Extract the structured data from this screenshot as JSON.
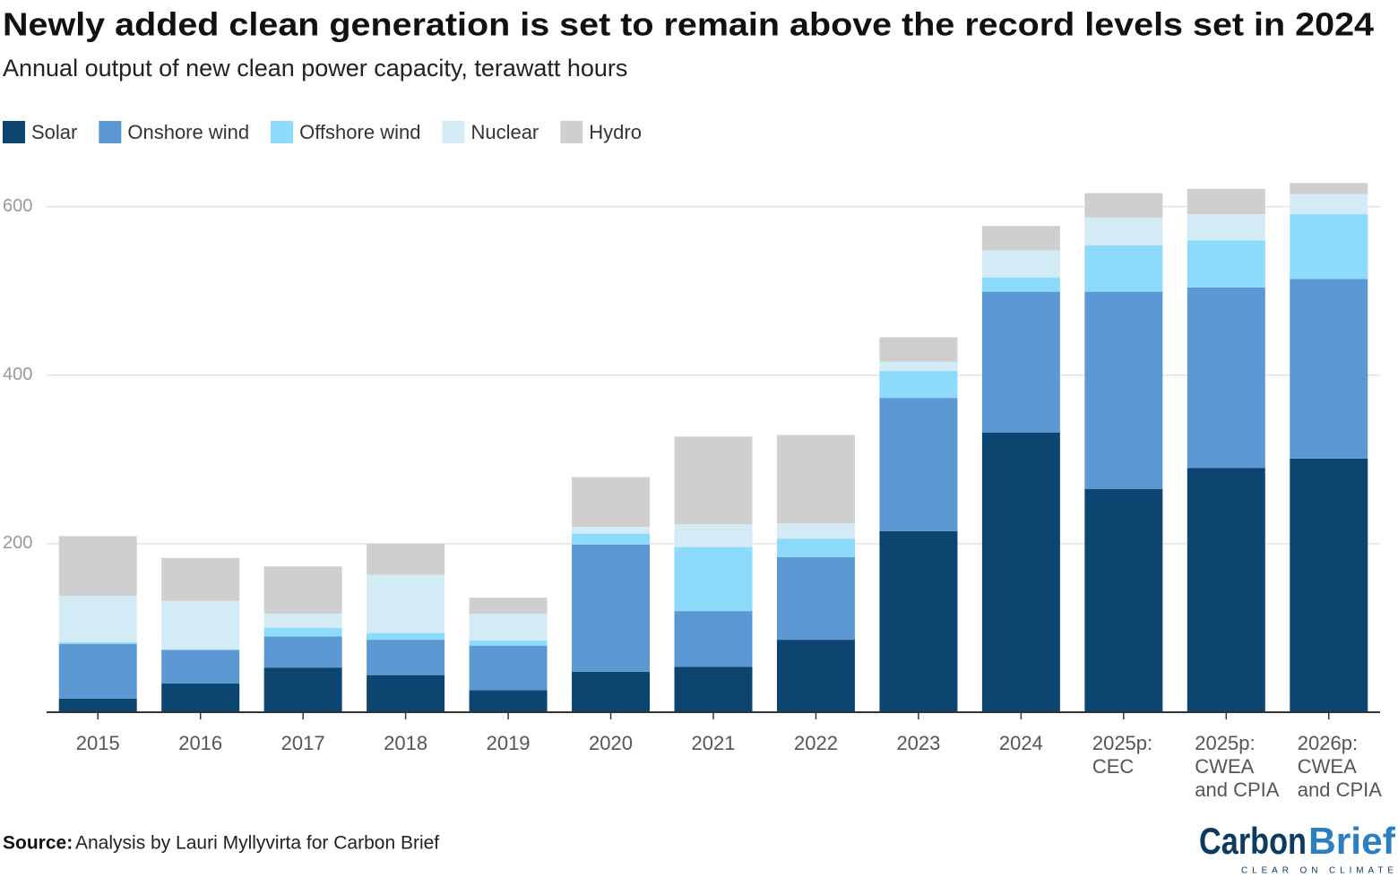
{
  "chart_data": {
    "type": "stacked-bar",
    "title": "Newly added clean generation is set to remain above the record levels set in 2024",
    "subtitle": "Annual output of new clean power capacity, terawatt hours",
    "categories": [
      [
        "2015"
      ],
      [
        "2016"
      ],
      [
        "2017"
      ],
      [
        "2018"
      ],
      [
        "2019"
      ],
      [
        "2020"
      ],
      [
        "2021"
      ],
      [
        "2022"
      ],
      [
        "2023"
      ],
      [
        "2024"
      ],
      [
        "2025p:",
        "CEC"
      ],
      [
        "2025p:",
        "CWEA",
        "and CPIA"
      ],
      [
        "2026p:",
        "CWEA",
        "and CPIA"
      ]
    ],
    "series": [
      {
        "name": "Solar",
        "color": "#0d4571",
        "values": [
          16,
          34,
          53,
          44,
          26,
          48,
          54,
          86,
          215,
          332,
          265,
          290,
          301
        ]
      },
      {
        "name": "Onshore wind",
        "color": "#5b98d4",
        "values": [
          65,
          40,
          37,
          42,
          53,
          151,
          66,
          98,
          158,
          167,
          234,
          214,
          213
        ]
      },
      {
        "name": "Offshore wind",
        "color": "#8cdbfc",
        "values": [
          2,
          0,
          10,
          8,
          6,
          13,
          76,
          22,
          32,
          17,
          55,
          56,
          77
        ]
      },
      {
        "name": "Nuclear",
        "color": "#d3ebf4",
        "values": [
          55,
          58,
          17,
          69,
          32,
          8,
          27,
          18,
          11,
          32,
          33,
          31,
          24
        ]
      },
      {
        "name": "Hydro",
        "color": "#cfcfcf",
        "values": [
          71,
          51,
          56,
          37,
          19,
          59,
          104,
          105,
          29,
          29,
          29,
          30,
          13
        ]
      }
    ],
    "ylim": [
      0,
      640
    ],
    "yticks": [
      200,
      400,
      600
    ],
    "grid": true,
    "legend": "top-left",
    "source_label": "Source:",
    "source_text": "Analysis by Lauri Myllyvirta for Carbon Brief",
    "logo_primary": "Carbon",
    "logo_secondary": "Brief",
    "logo_tagline": "CLEAR ON CLIMATE"
  }
}
